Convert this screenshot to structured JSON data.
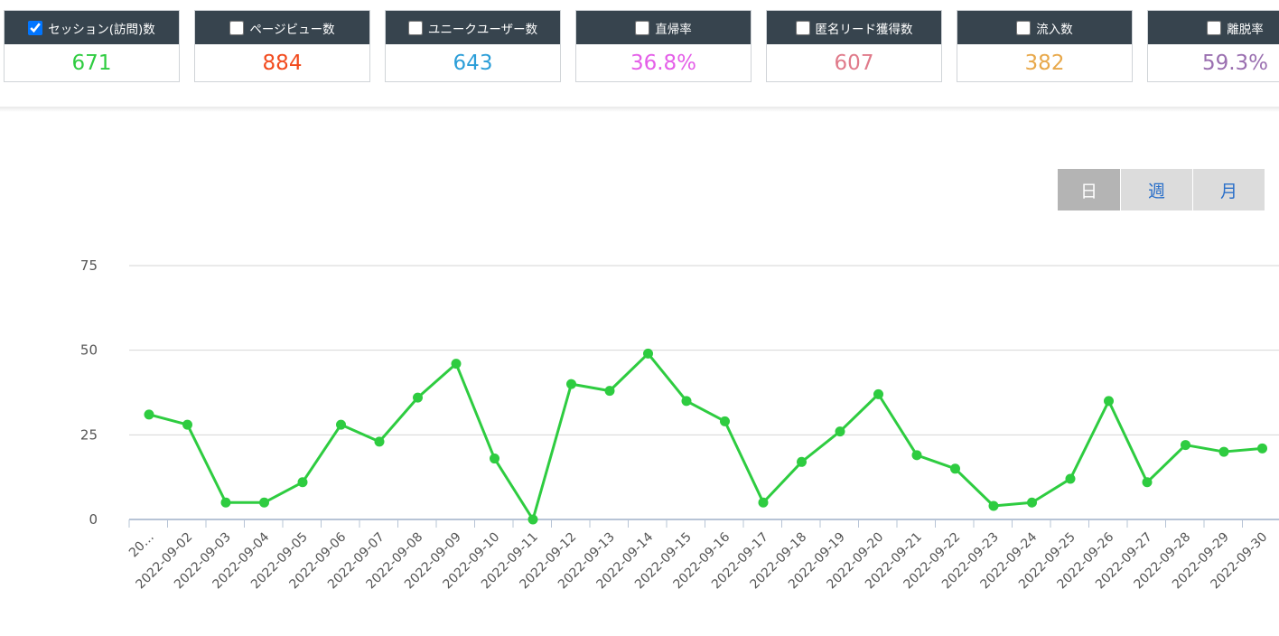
{
  "metrics": [
    {
      "label": "セッション(訪問)数",
      "value": "671",
      "color": "#2ecc40",
      "checked": true
    },
    {
      "label": "ページビュー数",
      "value": "884",
      "color": "#f24a1d",
      "checked": false
    },
    {
      "label": "ユニークユーザー数",
      "value": "643",
      "color": "#2b9ed8",
      "checked": false
    },
    {
      "label": "直帰率",
      "value": "36.8%",
      "color": "#e45ee8",
      "checked": false
    },
    {
      "label": "匿名リード獲得数",
      "value": "607",
      "color": "#e07a8a",
      "checked": false
    },
    {
      "label": "流入数",
      "value": "382",
      "color": "#e8a84a",
      "checked": false
    },
    {
      "label": "離脱率",
      "value": "59.3%",
      "color": "#9a6fb0",
      "checked": false
    }
  ],
  "period": {
    "day": "日",
    "week": "週",
    "month": "月",
    "active": "day"
  },
  "chart_data": {
    "type": "line",
    "line_color": "#2ecc40",
    "x": [
      "20…",
      "2022-09-02",
      "2022-09-03",
      "2022-09-04",
      "2022-09-05",
      "2022-09-06",
      "2022-09-07",
      "2022-09-08",
      "2022-09-09",
      "2022-09-10",
      "2022-09-11",
      "2022-09-12",
      "2022-09-13",
      "2022-09-14",
      "2022-09-15",
      "2022-09-16",
      "2022-09-17",
      "2022-09-18",
      "2022-09-19",
      "2022-09-20",
      "2022-09-21",
      "2022-09-22",
      "2022-09-23",
      "2022-09-24",
      "2022-09-25",
      "2022-09-26",
      "2022-09-27",
      "2022-09-28",
      "2022-09-29",
      "2022-09-30"
    ],
    "series": [
      {
        "values": [
          31,
          28,
          5,
          5,
          11,
          28,
          23,
          36,
          46,
          18,
          0,
          40,
          38,
          49,
          35,
          29,
          5,
          17,
          26,
          37,
          19,
          15,
          4,
          5,
          12,
          35,
          11,
          22,
          20,
          21
        ]
      }
    ],
    "yticks": [
      0,
      25,
      50,
      75
    ],
    "ylim": [
      0,
      75
    ],
    "grid": true
  }
}
